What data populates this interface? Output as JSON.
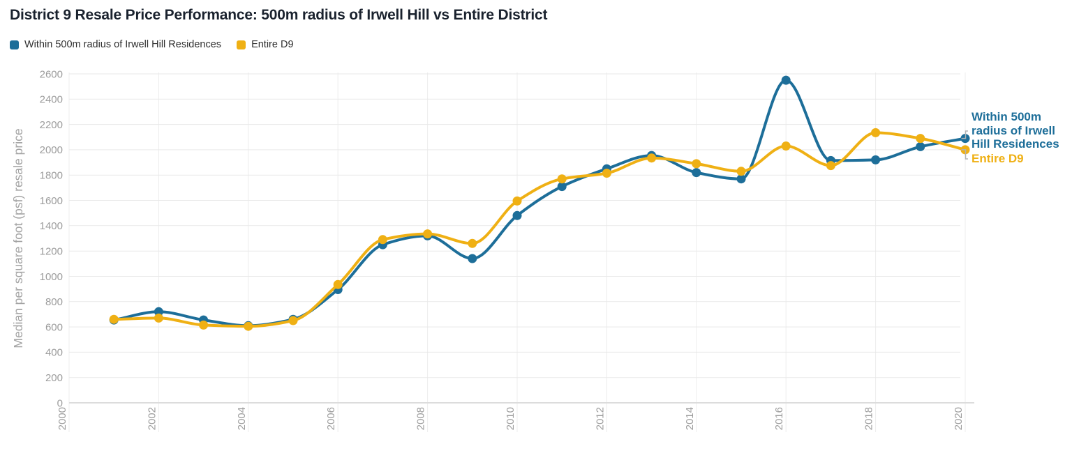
{
  "title": "District 9 Resale Price Performance: 500m radius of Irwell Hill vs Entire District",
  "chart_data": {
    "type": "line",
    "title": "District 9 Resale Price Performance: 500m radius of Irwell Hill vs Entire District",
    "xlabel": "",
    "ylabel": "Median per square foot (psf) resale price",
    "x": [
      2001,
      2002,
      2003,
      2004,
      2005,
      2006,
      2007,
      2008,
      2009,
      2010,
      2011,
      2012,
      2013,
      2014,
      2015,
      2016,
      2017,
      2018,
      2019,
      2020
    ],
    "series": [
      {
        "name": "Within 500m radius of Irwell Hill Residences",
        "color": "#1d6e99",
        "values": [
          655,
          720,
          655,
          610,
          660,
          895,
          1250,
          1320,
          1140,
          1480,
          1710,
          1850,
          1955,
          1820,
          1770,
          2550,
          1915,
          1920,
          2025,
          2090
        ]
      },
      {
        "name": "Entire D9",
        "color": "#efb014",
        "values": [
          660,
          670,
          615,
          605,
          650,
          935,
          1290,
          1335,
          1260,
          1595,
          1770,
          1815,
          1935,
          1890,
          1830,
          2030,
          1875,
          2135,
          2090,
          2000
        ]
      }
    ],
    "x_ticks": [
      2000,
      2002,
      2004,
      2006,
      2008,
      2010,
      2012,
      2014,
      2016,
      2018,
      2020
    ],
    "y_ticks": [
      0,
      200,
      400,
      600,
      800,
      1000,
      1200,
      1400,
      1600,
      1800,
      2000,
      2200,
      2400,
      2600
    ],
    "xlim": [
      2000,
      2020
    ],
    "ylim": [
      0,
      2600
    ],
    "grid": true,
    "legend_position": "top-left",
    "end_labels": true,
    "tick_color": "#9c9c9c",
    "grid_color": "#e9e9e9",
    "baseline_color": "#dcdcdc",
    "connector_color": "#b3b3b3"
  }
}
